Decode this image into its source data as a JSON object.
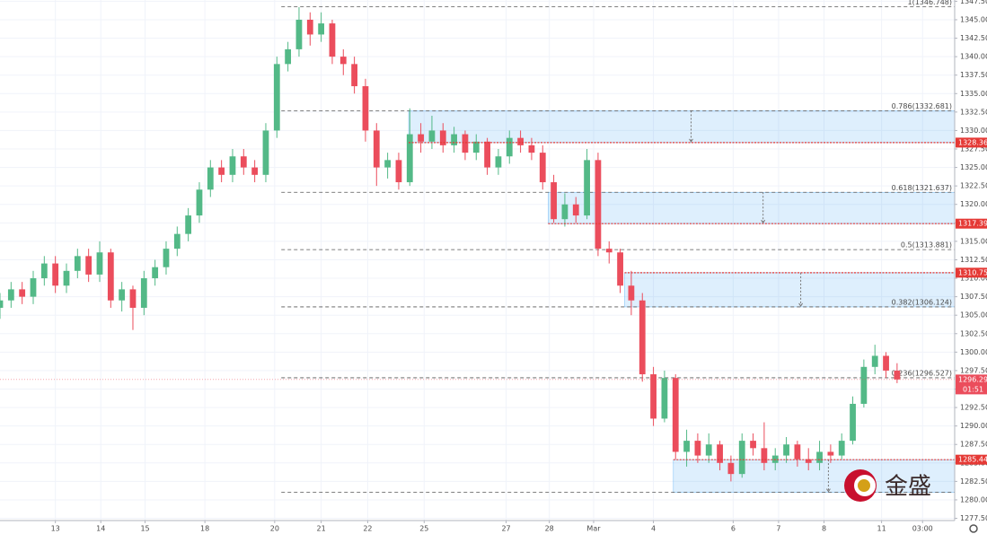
{
  "chart_data": {
    "type": "candlestick",
    "xlim": [
      0,
      86.2
    ],
    "ylim": [
      1277.2,
      1347.67
    ],
    "xticks": [
      {
        "value": 5,
        "label": "13"
      },
      {
        "value": 9.1,
        "label": "14"
      },
      {
        "value": 13.1,
        "label": "15"
      },
      {
        "value": 18.5,
        "label": "18"
      },
      {
        "value": 24.8,
        "label": "20"
      },
      {
        "value": 29,
        "label": "21"
      },
      {
        "value": 33.2,
        "label": "22"
      },
      {
        "value": 38.3,
        "label": "25"
      },
      {
        "value": 45.7,
        "label": "27"
      },
      {
        "value": 49.6,
        "label": "28"
      },
      {
        "value": 53.6,
        "label": "Mar"
      },
      {
        "value": 59,
        "label": "4"
      },
      {
        "value": 66.2,
        "label": "6"
      },
      {
        "value": 70.3,
        "label": "7"
      },
      {
        "value": 74.4,
        "label": "8"
      },
      {
        "value": 79.6,
        "label": "11"
      },
      {
        "value": 83.3,
        "label": "03:00"
      }
    ],
    "yticks": [
      {
        "value": 1277.5,
        "label": "1277.500"
      },
      {
        "value": 1280,
        "label": "1280.000"
      },
      {
        "value": 1282.5,
        "label": "1282.500"
      },
      {
        "value": 1285,
        "label": "1285.000"
      },
      {
        "value": 1287.5,
        "label": "1287.500"
      },
      {
        "value": 1290,
        "label": "1290.000"
      },
      {
        "value": 1292.5,
        "label": "1292.500"
      },
      {
        "value": 1295,
        "label": "1295.000"
      },
      {
        "value": 1297.5,
        "label": "1297.500"
      },
      {
        "value": 1300,
        "label": "1300.000"
      },
      {
        "value": 1302.5,
        "label": "1302.500"
      },
      {
        "value": 1305,
        "label": "1305.000"
      },
      {
        "value": 1307.5,
        "label": "1307.500"
      },
      {
        "value": 1310,
        "label": "1310.000"
      },
      {
        "value": 1312.5,
        "label": "1312.500"
      },
      {
        "value": 1315,
        "label": "1315.000"
      },
      {
        "value": 1317.5,
        "label": "1317.500"
      },
      {
        "value": 1320,
        "label": "1320.000"
      },
      {
        "value": 1322.5,
        "label": "1322.500"
      },
      {
        "value": 1325,
        "label": "1325.000"
      },
      {
        "value": 1327.5,
        "label": "1327.500"
      },
      {
        "value": 1330,
        "label": "1330.000"
      },
      {
        "value": 1332.5,
        "label": "1332.500"
      },
      {
        "value": 1335,
        "label": "1335.000"
      },
      {
        "value": 1337.5,
        "label": "1337.500"
      },
      {
        "value": 1340,
        "label": "1340.000"
      },
      {
        "value": 1342.5,
        "label": "1342.500"
      },
      {
        "value": 1345,
        "label": "1345.000"
      },
      {
        "value": 1347.5,
        "label": "1347.500"
      }
    ],
    "grid": true,
    "up_color": "#53b987",
    "down_color": "#eb4d5c",
    "open": [
      1306,
      1307,
      1308.5,
      1307.5,
      1310,
      1312,
      1309,
      1311,
      1313,
      1310.5,
      1313.5,
      1307,
      1308.5,
      1306,
      1310,
      1311.5,
      1314,
      1316,
      1318.5,
      1322,
      1325,
      1324,
      1326.5,
      1325,
      1324,
      1330,
      1339,
      1341,
      1345,
      1343,
      1344.5,
      1340,
      1339,
      1336,
      1330,
      1325,
      1326,
      1323,
      1329.5,
      1328.5,
      1330,
      1328,
      1329.5,
      1327,
      1328.5,
      1325,
      1326.5,
      1329,
      1328,
      1327,
      1323,
      1318,
      1320,
      1318.5,
      1326,
      1314,
      1313.5,
      1309,
      1307,
      1297,
      1291,
      1296.5,
      1286.5,
      1288,
      1286,
      1287.5,
      1285,
      1283.5,
      1288,
      1287,
      1285,
      1286,
      1287.5,
      1285.5,
      1285,
      1286.5,
      1286,
      1288,
      1293,
      1298,
      1299.5,
      1297.5
    ],
    "high": [
      1308,
      1309.5,
      1309.5,
      1311,
      1313,
      1313,
      1312,
      1314,
      1314,
      1315,
      1314,
      1309.5,
      1309,
      1311,
      1312.5,
      1315,
      1317,
      1319.5,
      1323,
      1326,
      1326,
      1327.5,
      1327.5,
      1326,
      1331,
      1340,
      1342,
      1346.7,
      1346,
      1346,
      1345,
      1341,
      1340,
      1337,
      1331,
      1327,
      1327,
      1333,
      1331,
      1332,
      1331,
      1330.5,
      1330,
      1329.5,
      1329,
      1327.5,
      1330,
      1330,
      1329,
      1328,
      1324,
      1321.5,
      1321,
      1327.5,
      1327,
      1315,
      1314,
      1311,
      1308,
      1298,
      1297.5,
      1297,
      1289.5,
      1289,
      1289,
      1288,
      1286,
      1289,
      1289,
      1290.5,
      1287,
      1288.5,
      1288,
      1287,
      1288,
      1287.5,
      1289,
      1294,
      1299,
      1301,
      1300,
      1298.5
    ],
    "low": [
      1304.5,
      1306,
      1306.5,
      1306.5,
      1309,
      1308,
      1308,
      1310,
      1309.5,
      1309.5,
      1306,
      1305.5,
      1303,
      1305,
      1309,
      1310.5,
      1313,
      1315,
      1317.5,
      1321,
      1323,
      1323,
      1324,
      1323,
      1323,
      1329,
      1338,
      1340,
      1341.5,
      1342,
      1339,
      1337.5,
      1335,
      1328.5,
      1322.5,
      1323.5,
      1322,
      1322.5,
      1327,
      1327.5,
      1327,
      1327,
      1326,
      1326,
      1324,
      1324,
      1325.5,
      1327,
      1326,
      1322,
      1317.5,
      1317,
      1317.5,
      1318,
      1313,
      1312,
      1308,
      1305,
      1296,
      1290,
      1290.5,
      1285.5,
      1284.5,
      1285,
      1285,
      1284,
      1282.5,
      1283,
      1286,
      1284,
      1284,
      1285,
      1284.5,
      1284,
      1284,
      1285,
      1285.5,
      1287.5,
      1292.5,
      1297,
      1296.5,
      1295.8
    ],
    "close": [
      1307,
      1308.5,
      1307.5,
      1310,
      1312,
      1309,
      1311,
      1313,
      1310.5,
      1313.5,
      1307,
      1308.5,
      1306,
      1310,
      1311.5,
      1314,
      1316,
      1318.5,
      1322,
      1325,
      1324,
      1326.5,
      1325,
      1324,
      1330,
      1339,
      1341,
      1345,
      1343,
      1344.5,
      1340,
      1339,
      1336,
      1330,
      1325,
      1326,
      1323,
      1329.5,
      1328.5,
      1330,
      1328,
      1329.5,
      1327,
      1328.5,
      1325,
      1326.5,
      1329,
      1328,
      1327,
      1323,
      1318,
      1320,
      1318.5,
      1326,
      1314,
      1313.5,
      1309,
      1307,
      1297,
      1291,
      1296.5,
      1286.5,
      1288,
      1286,
      1287.5,
      1285,
      1283.5,
      1288,
      1287,
      1285,
      1286,
      1287.5,
      1285.5,
      1285,
      1286.5,
      1286,
      1288,
      1293,
      1298,
      1299.5,
      1297.5,
      1296.3
    ],
    "fib_start": 25.4,
    "fib_levels": [
      {
        "value": 1346.748,
        "label": "1(1346.748)"
      },
      {
        "value": 1332.681,
        "label": "0.786(1332.681)"
      },
      {
        "value": 1321.637,
        "label": "0.618(1321.637)"
      },
      {
        "value": 1313.881,
        "label": "0.5(1313.881)"
      },
      {
        "value": 1306.124,
        "label": "0.382(1306.124)"
      },
      {
        "value": 1296.527,
        "label": "0.236(1296.527)"
      },
      {
        "value": 1281.013
      }
    ],
    "zones": [
      {
        "from": 1328.365,
        "to": 1332.681,
        "start": 36.9,
        "arrow": 62.4
      },
      {
        "from": 1317.394,
        "to": 1321.637,
        "start": 49.5,
        "arrow": 68.9
      },
      {
        "from": 1306.124,
        "to": 1310.753,
        "start": 56.4,
        "arrow": 72.3
      },
      {
        "from": 1281.013,
        "to": 1285.441,
        "start": 60.8,
        "arrow": 74.8
      }
    ],
    "price_lines": [
      1328.365,
      1317.394,
      1310.753,
      1285.441
    ],
    "last_price": 1296.291,
    "countdown": "01:51",
    "watermark": "金盛"
  }
}
